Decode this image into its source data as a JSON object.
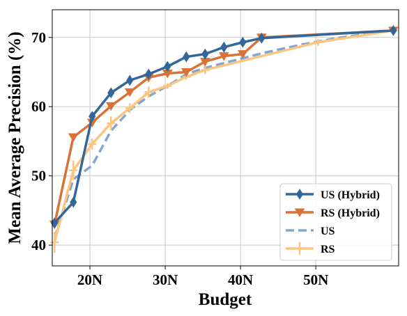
{
  "chart_data": {
    "type": "line",
    "title": "",
    "xlabel": "Budget",
    "ylabel": "Mean Average Precision (%)",
    "xlim": [
      15,
      61
    ],
    "ylim": [
      37,
      74
    ],
    "grid": true,
    "legend_position": "bottom-right",
    "x_ticks": [
      {
        "value": 20,
        "label": "20N"
      },
      {
        "value": 30,
        "label": "30N"
      },
      {
        "value": 40,
        "label": "40N"
      },
      {
        "value": 50,
        "label": "50N"
      }
    ],
    "y_ticks": [
      {
        "value": 40,
        "label": "40"
      },
      {
        "value": 50,
        "label": "50"
      },
      {
        "value": 60,
        "label": "60"
      },
      {
        "value": 70,
        "label": "70"
      }
    ],
    "series": [
      {
        "name": "US (Hybrid)",
        "color": "#336699",
        "line_style": "solid",
        "marker": "diamond",
        "x": [
          15.3,
          17.8,
          20.3,
          22.8,
          25.3,
          27.8,
          30.3,
          32.8,
          35.3,
          37.8,
          40.3,
          42.8,
          60.3
        ],
        "y": [
          43.2,
          46.2,
          58.6,
          62.0,
          63.8,
          64.7,
          65.8,
          67.2,
          67.6,
          68.6,
          69.3,
          69.9,
          71.0
        ]
      },
      {
        "name": "RS (Hybrid)",
        "color": "#d97236",
        "line_style": "solid",
        "marker": "triangle-down",
        "x": [
          15.3,
          17.8,
          20.3,
          22.8,
          25.3,
          27.8,
          30.3,
          32.8,
          35.3,
          37.8,
          40.3,
          42.8,
          60.3
        ],
        "y": [
          43.0,
          55.6,
          57.7,
          60.1,
          62.1,
          64.2,
          64.8,
          65.0,
          66.5,
          67.3,
          67.6,
          70.0,
          71.0
        ]
      },
      {
        "name": "US",
        "color": "#80a7d1",
        "line_style": "dashed",
        "marker": "none",
        "x": [
          15.3,
          17.8,
          20.3,
          22.8,
          25.3,
          27.8,
          30.3,
          32.8,
          35.3,
          37.8,
          40.3,
          42.8,
          45.3,
          47.8,
          50.3,
          52.8,
          55.3,
          57.8,
          60.3
        ],
        "y": [
          41.0,
          49.5,
          51.5,
          56.5,
          59.5,
          61.5,
          63.0,
          64.7,
          65.6,
          66.3,
          67.0,
          67.7,
          68.3,
          68.9,
          69.4,
          69.9,
          70.3,
          70.7,
          71.0
        ]
      },
      {
        "name": "RS",
        "color": "#fdc47f",
        "line_style": "solid",
        "marker": "plus",
        "x": [
          15.3,
          17.8,
          20.3,
          22.8,
          25.3,
          27.8,
          30.3,
          32.8,
          35.3,
          50.3,
          60.3
        ],
        "y": [
          40.4,
          50.8,
          54.6,
          57.6,
          59.8,
          62.1,
          63.0,
          64.3,
          65.3,
          69.3,
          71.0
        ],
        "error": [
          1.5,
          1.4,
          0.8,
          1.0,
          0.7,
          0.8,
          0.4,
          0.4,
          0.6,
          0.5,
          0.3
        ]
      }
    ]
  }
}
